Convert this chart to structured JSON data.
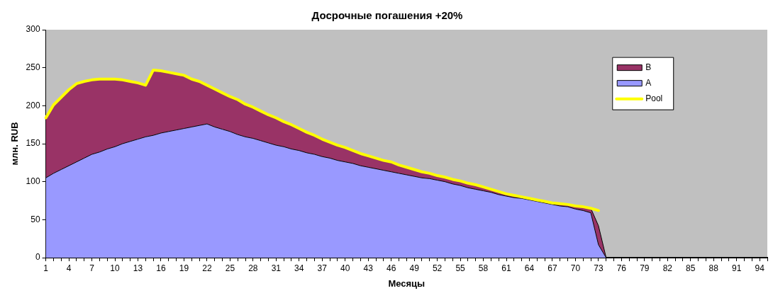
{
  "chart_data": {
    "type": "area",
    "title": "Досрочные погашения +20%",
    "xlabel": "Месяцы",
    "ylabel": "млн. RUB",
    "stacked": true,
    "legend": "top right",
    "marker": "none",
    "categories": [
      "1",
      null,
      null,
      "4",
      null,
      null,
      "7",
      null,
      null,
      "10",
      null,
      null,
      "13",
      null,
      null,
      "16",
      null,
      null,
      "19",
      null,
      null,
      "22",
      null,
      null,
      "25",
      null,
      null,
      "28",
      null,
      null,
      "31",
      null,
      null,
      "34",
      null,
      null,
      "37",
      null,
      null,
      "40",
      null,
      null,
      "43",
      null,
      null,
      "46",
      null,
      null,
      "49",
      null,
      null,
      "52",
      null,
      null,
      "55",
      null,
      null,
      "58",
      null,
      null,
      "61",
      null,
      null,
      "64",
      null,
      null,
      "67",
      null,
      null,
      "70",
      null,
      null,
      "73",
      null,
      null,
      "76",
      null,
      null,
      "79",
      null,
      null,
      "82",
      null,
      null,
      "85",
      null,
      null,
      "88",
      null,
      null,
      "91",
      null,
      null,
      "94",
      null
    ],
    "ylim": [
      0,
      300
    ],
    "yticks": [
      0,
      50,
      100,
      150,
      200,
      250,
      300
    ],
    "series": [
      {
        "name": "A",
        "color": "#9999ff",
        "values": [
          105,
          111,
          116,
          121,
          126,
          131,
          136,
          139,
          143,
          146,
          150,
          153,
          156,
          159,
          161,
          164,
          166,
          168,
          170,
          172,
          174,
          176,
          172,
          169,
          166,
          162,
          159,
          157,
          154,
          151,
          148,
          146,
          143,
          141,
          138,
          136,
          133,
          131,
          128,
          126,
          124,
          121,
          119,
          117,
          115,
          113,
          111,
          109,
          107,
          105,
          104,
          102,
          100,
          97,
          95,
          92,
          90,
          88,
          86,
          83,
          81,
          79,
          78,
          76,
          74,
          72,
          70,
          68,
          67,
          64,
          62,
          59,
          17,
          0,
          0,
          0,
          0,
          0,
          0,
          0,
          0,
          0,
          0,
          0,
          0,
          0,
          0,
          0,
          0,
          0,
          0,
          0,
          0,
          0,
          0
        ]
      },
      {
        "name": "B",
        "color": "#993366",
        "values": [
          79,
          90,
          95,
          100,
          103,
          101,
          98,
          96,
          92,
          89,
          84,
          79,
          74,
          68,
          86,
          82,
          78,
          74,
          70,
          63,
          58,
          51,
          50,
          48,
          46,
          46,
          43,
          41,
          39,
          37,
          36,
          33,
          32,
          29,
          27,
          25,
          23,
          21,
          20,
          19,
          17,
          16,
          15,
          14,
          13,
          13,
          11,
          10,
          9,
          8,
          7,
          6,
          6,
          6,
          6,
          6,
          6,
          5,
          4,
          4,
          3,
          3,
          2,
          2,
          2,
          2,
          2,
          3,
          3,
          4,
          5,
          6,
          25,
          0,
          0,
          0,
          0,
          0,
          0,
          0,
          0,
          0,
          0,
          0,
          0,
          0,
          0,
          0,
          0,
          0,
          0,
          0,
          0,
          0,
          0
        ]
      },
      {
        "name": "Pool",
        "type": "line",
        "color": "#ffff00",
        "values": [
          184,
          201,
          211,
          221,
          229,
          232,
          234,
          235,
          235,
          235,
          234,
          232,
          230,
          227,
          247,
          246,
          244,
          242,
          240,
          235,
          232,
          227,
          222,
          217,
          212,
          208,
          202,
          198,
          193,
          188,
          184,
          179,
          175,
          170,
          165,
          161,
          156,
          152,
          148,
          145,
          141,
          137,
          134,
          131,
          128,
          126,
          122,
          119,
          116,
          113,
          111,
          108,
          106,
          103,
          101,
          98,
          96,
          93,
          90,
          87,
          84,
          82,
          80,
          78,
          76,
          74,
          72,
          71,
          70,
          68,
          67,
          65,
          62,
          null,
          null,
          null,
          null,
          null,
          null,
          null,
          null,
          null,
          null,
          null,
          null,
          null,
          null,
          null,
          null,
          null,
          null,
          null,
          null,
          null,
          null
        ]
      }
    ]
  }
}
